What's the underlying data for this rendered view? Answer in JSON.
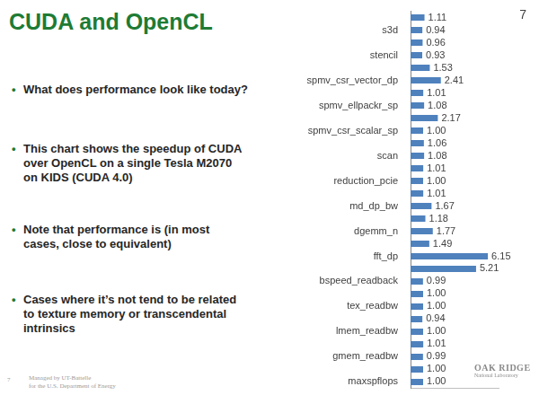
{
  "slide": {
    "title": "CUDA and OpenCL",
    "page_number": "7",
    "bullets": [
      "What does performance look like today?",
      "This chart shows the speedup of CUDA over OpenCL on a single Tesla M2070 on KIDS (CUDA 4.0)",
      "Note that performance is (in most cases, close to equivalent)",
      "Cases where it’s not tend to be related to texture memory or transcendental intrinsics"
    ],
    "footer_number": "7",
    "footer": [
      "Managed by UT-Battelle",
      "for the U.S. Department of Energy"
    ],
    "logo": [
      "OAK RIDGE",
      "National Laboratory"
    ]
  },
  "chart_data": {
    "type": "bar",
    "orientation": "horizontal",
    "categories": [
      null,
      "s3d",
      null,
      "stencil",
      null,
      "spmv_csr_vector_dp",
      null,
      "spmv_ellpackr_sp",
      null,
      "spmv_csr_scalar_sp",
      null,
      "scan",
      null,
      "reduction_pcie",
      null,
      "md_dp_bw",
      null,
      "dgemm_n",
      null,
      "fft_dp",
      null,
      "bspeed_readback",
      null,
      "tex_readbw",
      null,
      "lmem_readbw",
      null,
      "gmem_readbw",
      null,
      "maxspflops"
    ],
    "values": [
      1.11,
      0.94,
      0.96,
      0.93,
      1.53,
      2.41,
      1.01,
      1.08,
      2.17,
      1.0,
      1.06,
      1.08,
      1.01,
      1.0,
      1.01,
      1.67,
      1.18,
      1.77,
      1.49,
      6.15,
      5.21,
      0.99,
      1.0,
      1.0,
      0.94,
      1.0,
      1.01,
      0.99,
      1.0,
      1.0
    ],
    "value_labels": [
      "1.11",
      "0.94",
      "0.96",
      "0.93",
      "1.53",
      "2.41",
      "1.01",
      "1.08",
      "2.17",
      "1.00",
      "1.06",
      "1.08",
      "1.01",
      "1.00",
      "1.01",
      "1.67",
      "1.18",
      "1.77",
      "1.49",
      "6.15",
      "5.21",
      "0.99",
      "1.00",
      "1.00",
      "0.94",
      "1.00",
      "1.01",
      "0.99",
      "1.00",
      "1.00"
    ],
    "color": "#4f81bd",
    "xlim": [
      0,
      7
    ],
    "data_labels": true,
    "tick_labels": "y",
    "grid": false
  }
}
